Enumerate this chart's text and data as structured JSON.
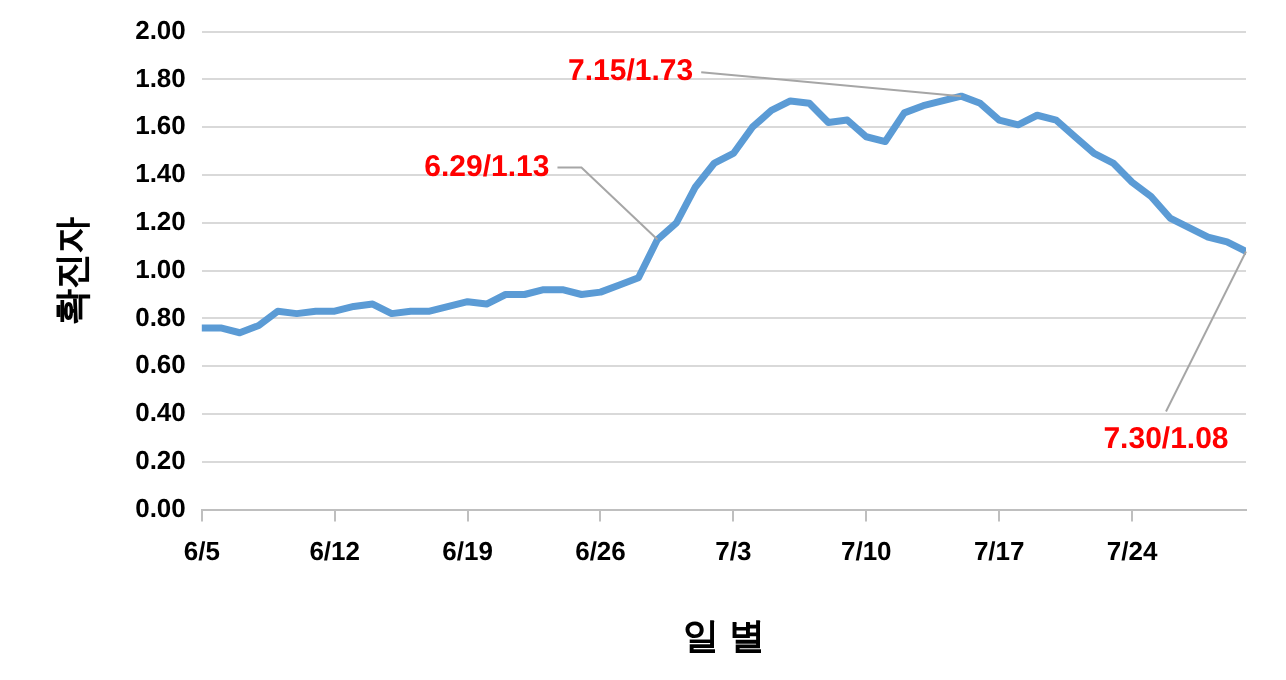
{
  "chart_data": {
    "type": "line",
    "xlabel": "일 별",
    "ylabel": "확진자",
    "x": [
      "--06-05",
      "--06-06",
      "--06-07",
      "--06-08",
      "--06-09",
      "--06-10",
      "--06-11",
      "--06-12",
      "--06-13",
      "--06-14",
      "--06-15",
      "--06-16",
      "--06-17",
      "--06-18",
      "--06-19",
      "--06-20",
      "--06-21",
      "--06-22",
      "--06-23",
      "--06-24",
      "--06-25",
      "--06-26",
      "--06-27",
      "--06-28",
      "--06-29",
      "--06-30",
      "--07-01",
      "--07-02",
      "--07-03",
      "--07-04",
      "--07-05",
      "--07-06",
      "--07-07",
      "--07-08",
      "--07-09",
      "--07-10",
      "--07-11",
      "--07-12",
      "--07-13",
      "--07-14",
      "--07-15",
      "--07-16",
      "--07-17",
      "--07-18",
      "--07-19",
      "--07-20",
      "--07-21",
      "--07-22",
      "--07-23",
      "--07-24",
      "--07-25",
      "--07-26",
      "--07-27",
      "--07-28",
      "--07-29",
      "--07-30"
    ],
    "series": [
      {
        "color": "#5b9bd5",
        "values": [
          0.76,
          0.76,
          0.74,
          0.77,
          0.83,
          0.82,
          0.83,
          0.83,
          0.85,
          0.86,
          0.82,
          0.83,
          0.83,
          0.85,
          0.87,
          0.86,
          0.9,
          0.9,
          0.92,
          0.92,
          0.9,
          0.91,
          0.94,
          0.97,
          1.13,
          1.2,
          1.35,
          1.45,
          1.49,
          1.6,
          1.67,
          1.71,
          1.7,
          1.62,
          1.63,
          1.56,
          1.54,
          1.66,
          1.69,
          1.71,
          1.73,
          1.7,
          1.63,
          1.61,
          1.65,
          1.63,
          1.56,
          1.49,
          1.45,
          1.37,
          1.31,
          1.22,
          1.18,
          1.14,
          1.12,
          1.08
        ]
      }
    ],
    "xlim": [
      "--06-05",
      "--07-30"
    ],
    "xticks": [
      {
        "value": "--06-05",
        "label": "6/5"
      },
      {
        "value": "--06-12",
        "label": "6/12"
      },
      {
        "value": "--06-19",
        "label": "6/19"
      },
      {
        "value": "--06-26",
        "label": "6/26"
      },
      {
        "value": "--07-03",
        "label": "7/3"
      },
      {
        "value": "--07-10",
        "label": "7/10"
      },
      {
        "value": "--07-17",
        "label": "7/17"
      },
      {
        "value": "--07-24",
        "label": "7/24"
      }
    ],
    "ylim": [
      0,
      2
    ],
    "yticks": [
      {
        "value": 0,
        "label": "0.00"
      },
      {
        "value": 0.2,
        "label": "0.20"
      },
      {
        "value": 0.4,
        "label": "0.40"
      },
      {
        "value": 0.6,
        "label": "0.60"
      },
      {
        "value": 0.8,
        "label": "0.80"
      },
      {
        "value": 1,
        "label": "1.00"
      },
      {
        "value": 1.2,
        "label": "1.20"
      },
      {
        "value": 1.4,
        "label": "1.40"
      },
      {
        "value": 1.6,
        "label": "1.60"
      },
      {
        "value": 1.8,
        "label": "1.80"
      },
      {
        "value": 2,
        "label": "2.00"
      }
    ],
    "grid": "y",
    "legend": false,
    "marker": "none",
    "line_style": "solid",
    "annotations": [
      {
        "text": "6.29/1.13",
        "x": "--06-29",
        "y": 1.13
      },
      {
        "text": "7.15/1.73",
        "x": "--07-15",
        "y": 1.73
      },
      {
        "text": "7.30/1.08",
        "x": "--07-30",
        "y": 1.08
      }
    ]
  }
}
